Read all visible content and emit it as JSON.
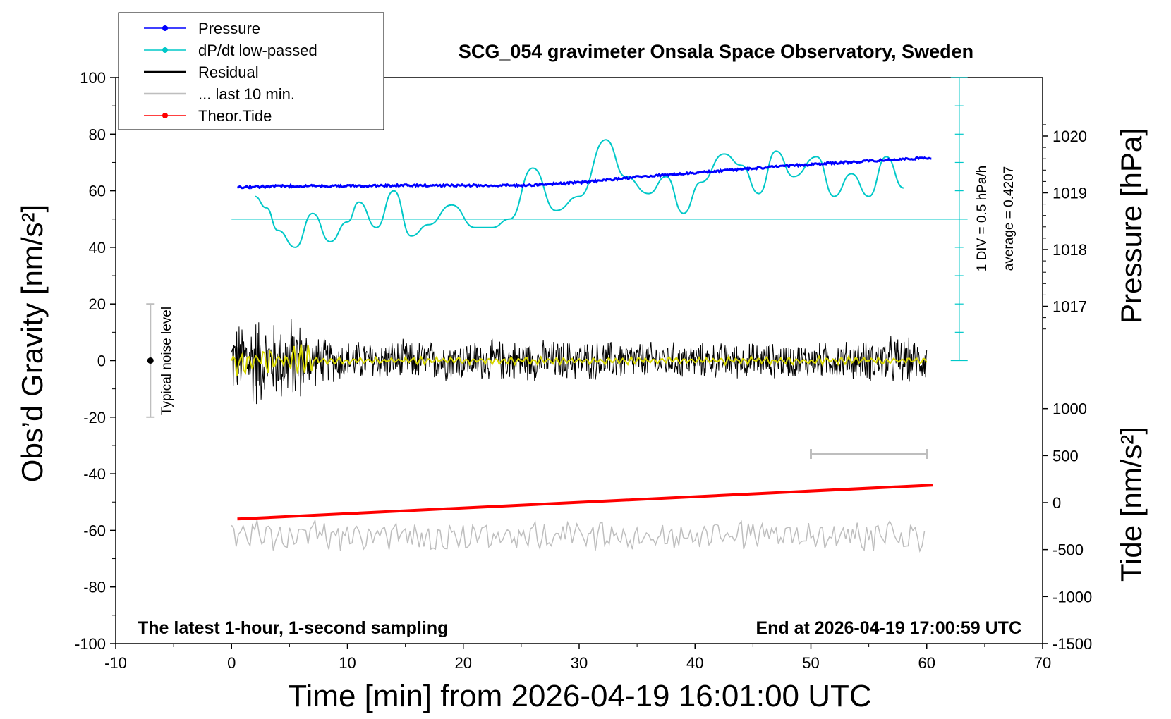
{
  "chart_data": {
    "type": "line",
    "title": "SCG_054 gravimeter Onsala Space Observatory, Sweden",
    "xlabel": "Time [min] from 2026-04-19 16:01:00 UTC",
    "ylabel_left": "Obs’d Gravity [nm/s²]",
    "ylabel_right_pressure": "Pressure [hPa]",
    "ylabel_right_tide": "Tide [nm/s²]",
    "xlim": [
      -10,
      70
    ],
    "ylim_left": [
      -100,
      100
    ],
    "x_ticks": [
      "-10",
      "0",
      "10",
      "20",
      "30",
      "40",
      "50",
      "60",
      "70"
    ],
    "y_ticks_left": [
      "100",
      "80",
      "60",
      "40",
      "20",
      "0",
      "-20",
      "-40",
      "-60",
      "-80",
      "-100"
    ],
    "pressure_ticks": [
      "1020",
      "1019",
      "1018",
      "1017"
    ],
    "tide_ticks": [
      "1000",
      "500",
      "0",
      "-500",
      "-1000",
      "-1500"
    ],
    "bottom_left_note": "The latest 1-hour, 1-second sampling",
    "bottom_right_note": "End at 2026-04-19 17:00:59 UTC",
    "noise_label": "Typical noise level",
    "noise_bar": {
      "x": -7,
      "ymin": -20,
      "ymax": 20
    },
    "scale_bar_label_1": "1 DIV = 0.5 hPa/h",
    "scale_bar_label_2": "average = 0.4207",
    "legend": [
      {
        "name": "Pressure",
        "color": "#0000ff",
        "marker": true
      },
      {
        "name": "dP/dt low-passed",
        "color": "#00c8c8",
        "marker": true
      },
      {
        "name": "Residual",
        "color": "#000000",
        "marker": false
      },
      {
        "name": "... last 10 min.",
        "color": "#bebebe",
        "marker": false
      },
      {
        "name": "Theor.Tide",
        "color": "#ff0000",
        "marker": true
      }
    ],
    "series": {
      "pressure": {
        "name": "Pressure",
        "color": "#0000ff",
        "x": [
          0.5,
          5,
          10,
          15,
          20,
          25,
          30,
          35,
          40,
          45,
          50,
          55,
          60.5
        ],
        "y": [
          1019.1,
          1019.12,
          1019.12,
          1019.13,
          1019.13,
          1019.13,
          1019.18,
          1019.28,
          1019.35,
          1019.43,
          1019.5,
          1019.56,
          1019.62
        ]
      },
      "dpdt": {
        "name": "dP/dt low-passed",
        "color": "#00c8c8",
        "x": [
          2,
          3,
          4,
          5.5,
          7,
          8.5,
          10,
          11,
          12.5,
          14,
          15.5,
          17,
          19,
          21,
          22.5,
          24,
          26,
          28,
          30,
          32.3,
          34,
          36,
          37.5,
          39,
          40.5,
          42.5,
          44,
          45.5,
          47,
          48.5,
          50.5,
          52,
          53.5,
          55,
          56.5,
          58
        ],
        "y": [
          58,
          54,
          46,
          40,
          52,
          42,
          49,
          56,
          47,
          60,
          44,
          48,
          55,
          47,
          47,
          50,
          68,
          53,
          58,
          78,
          65,
          59,
          65,
          52,
          63,
          73,
          69,
          59,
          74,
          65,
          72,
          58,
          66,
          58,
          72,
          61
        ]
      },
      "residual_envelope": {
        "name": "Residual",
        "color": "#000000",
        "x": [
          0,
          1,
          2,
          3,
          4,
          5,
          6,
          7,
          8,
          10,
          20,
          30,
          40,
          50,
          55,
          57,
          58,
          60
        ],
        "y": [
          14,
          16,
          20,
          15,
          16,
          18,
          16,
          10,
          9,
          8,
          8,
          8,
          7,
          7,
          8,
          10,
          9,
          8
        ]
      },
      "last10": {
        "name": "... last 10 min.",
        "color": "#bebebe",
        "x": [
          0,
          60
        ],
        "y": [
          -62,
          -62
        ],
        "amplitude": 4
      },
      "tide": {
        "name": "Theor.Tide",
        "color": "#ff0000",
        "x": [
          0.5,
          60.5
        ],
        "y": [
          -56,
          -44
        ]
      },
      "yellow_smoothed": {
        "color": "#d8d800",
        "x": [
          0,
          60
        ],
        "y": [
          0,
          0
        ]
      }
    },
    "grid": false,
    "legend_position": "top-left"
  }
}
